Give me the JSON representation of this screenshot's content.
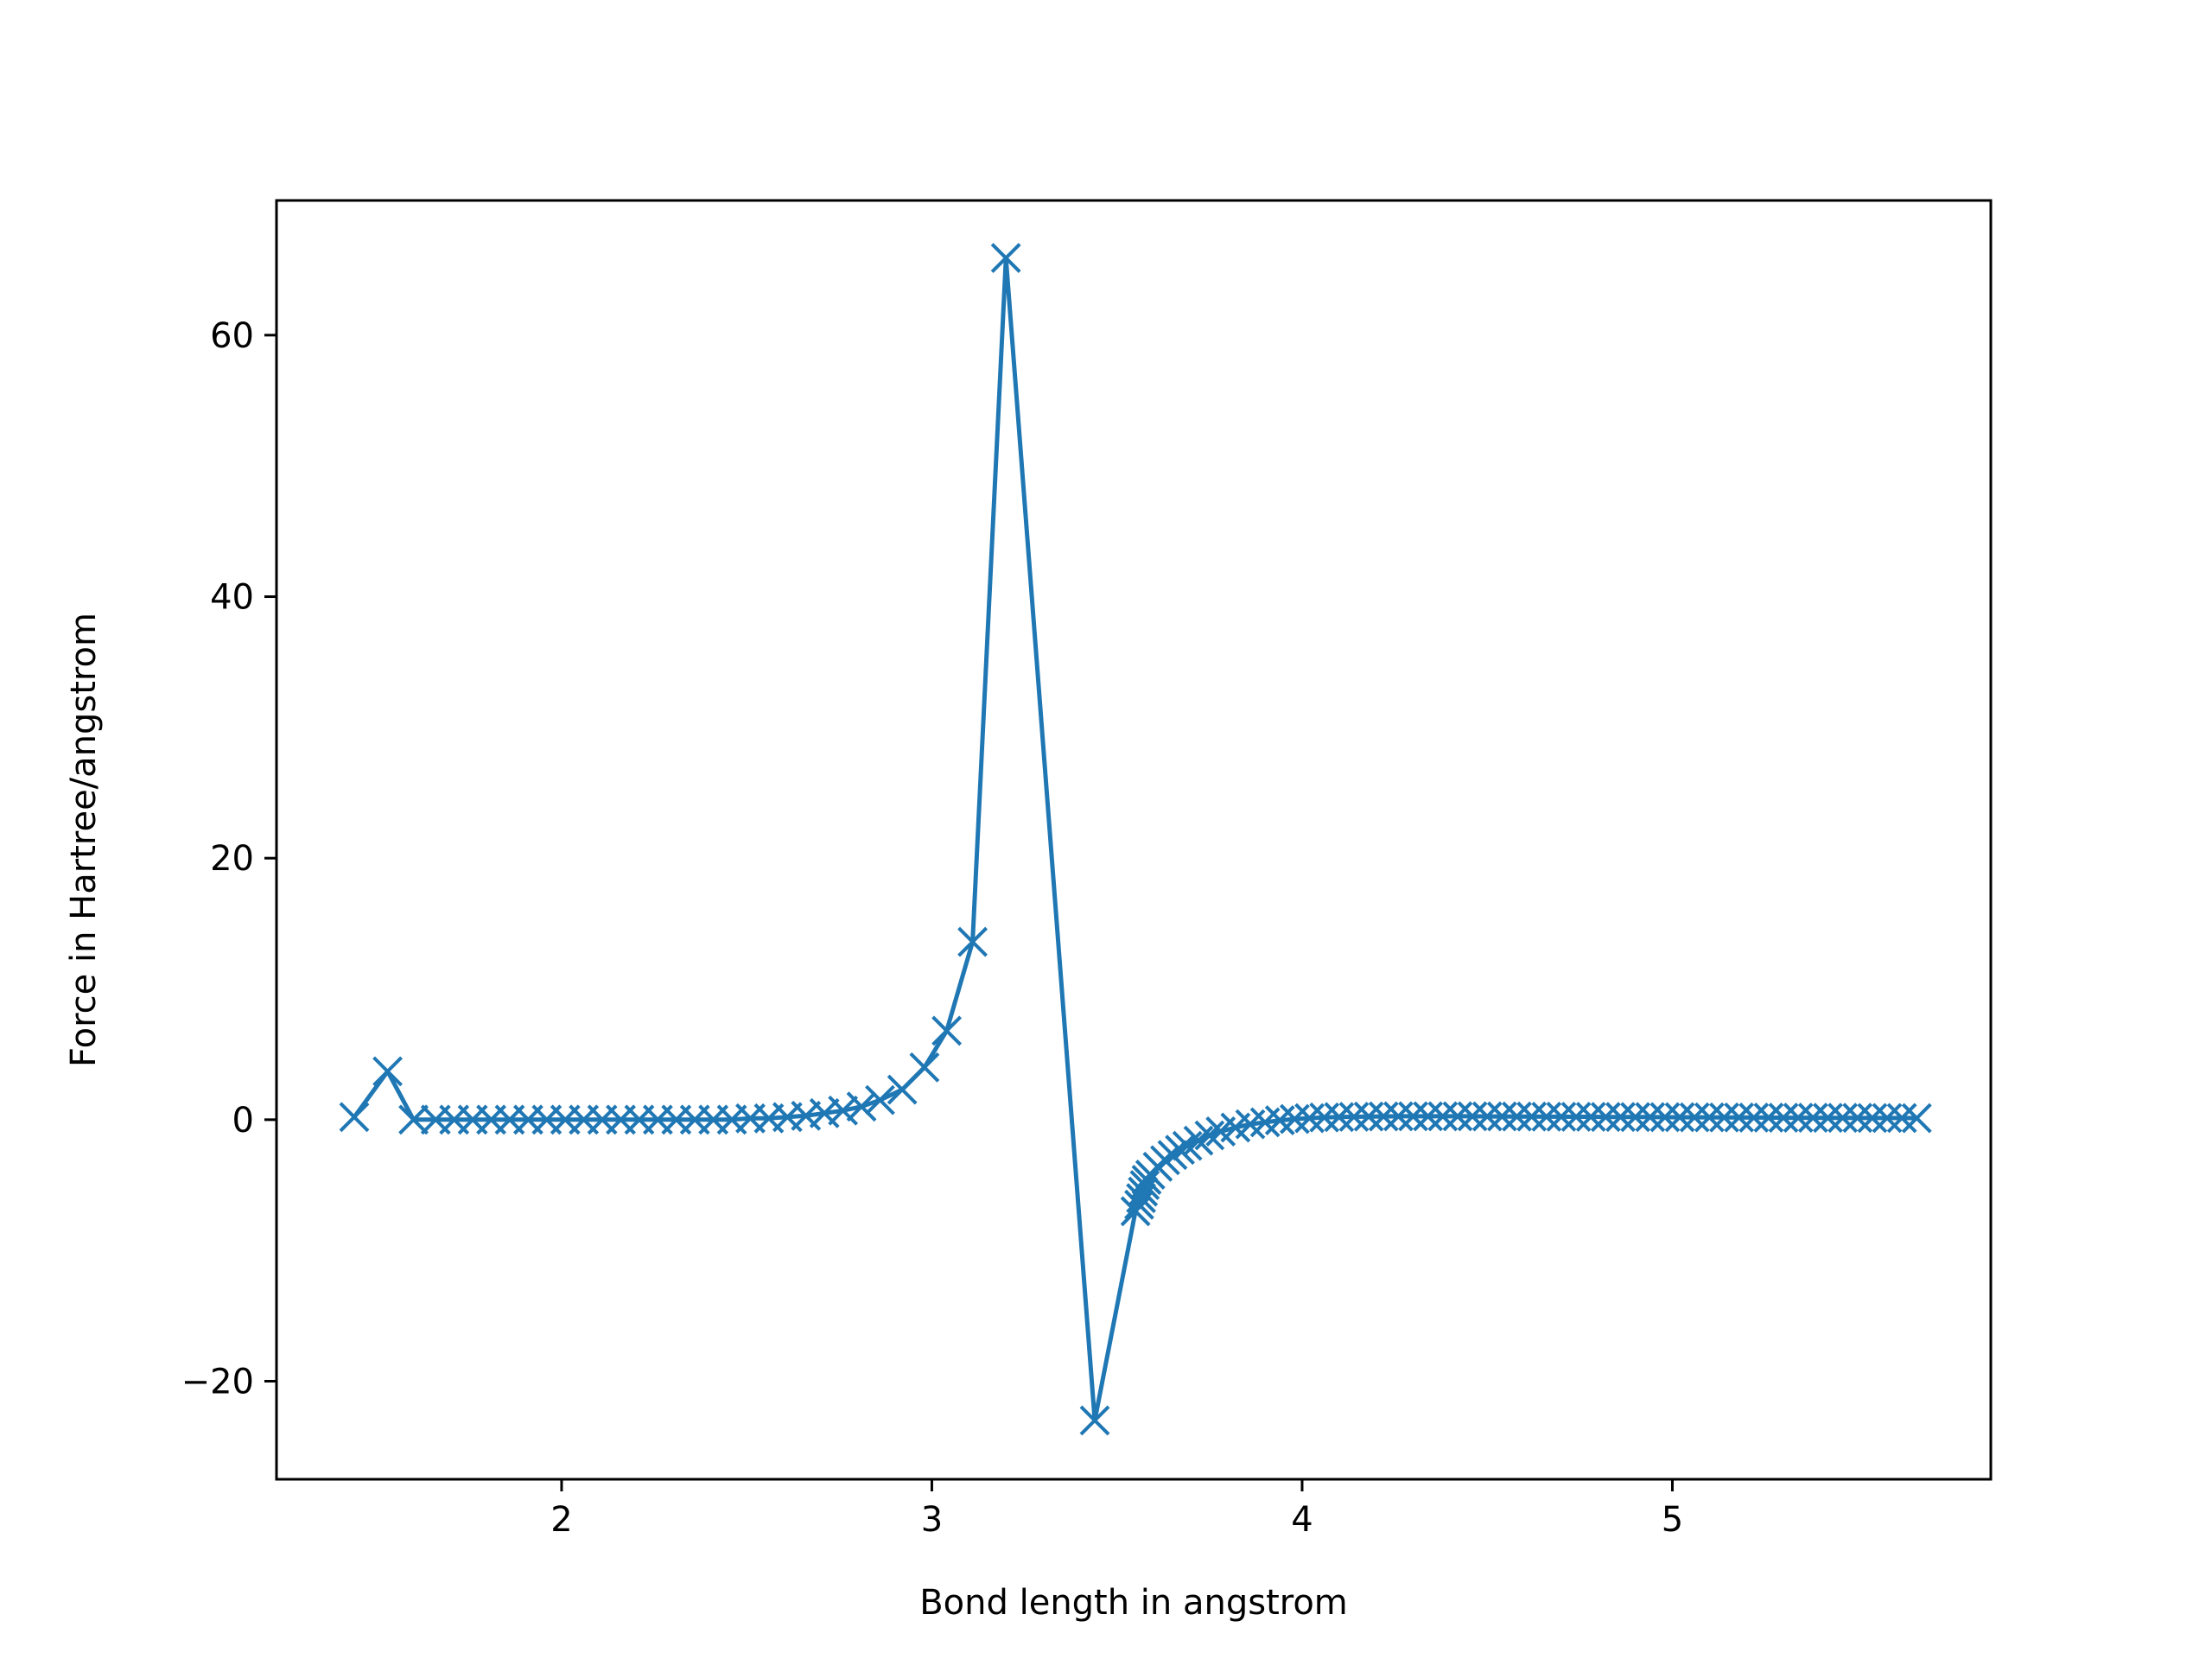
{
  "chart_data": {
    "type": "line",
    "title": "",
    "xlabel": "Bond length in angstrom",
    "ylabel": "Force in Hartree/angstrom",
    "xlim": [
      1.23,
      5.86
    ],
    "ylim": [
      -27.5,
      70.3
    ],
    "grid": false,
    "xticks": [
      2,
      3,
      4,
      5
    ],
    "yticks": [
      -20,
      0,
      20,
      40,
      60
    ],
    "xtick_labels": [
      "2",
      "3",
      "4",
      "5"
    ],
    "ytick_labels": [
      "−20",
      "0",
      "20",
      "40",
      "60"
    ],
    "marker": "x",
    "color": "#1f77b4",
    "series": [
      {
        "x": [
          1.44,
          1.53,
          1.6,
          1.66,
          1.71,
          1.76,
          1.81,
          1.86,
          1.91,
          1.96,
          2.01,
          2.06,
          2.11,
          2.16,
          2.21,
          2.26,
          2.31,
          2.36,
          2.41,
          2.46,
          2.51,
          2.56,
          2.61,
          2.66,
          2.71,
          2.76,
          2.81,
          2.86,
          2.92,
          2.98,
          3.04,
          3.11,
          3.2,
          3.44,
          3.55,
          3.56,
          3.565,
          3.57,
          3.575,
          3.58,
          3.59,
          3.61,
          3.63,
          3.65,
          3.67,
          3.69,
          3.72,
          3.75,
          3.78,
          3.82,
          3.86,
          3.9,
          3.94,
          3.98,
          4.02,
          4.06,
          4.1,
          4.14,
          4.18,
          4.22,
          4.26,
          4.3,
          4.34,
          4.38,
          4.42,
          4.46,
          4.5,
          4.54,
          4.58,
          4.62,
          4.66,
          4.7,
          4.74,
          4.78,
          4.82,
          4.86,
          4.9,
          4.94,
          4.98,
          5.02,
          5.06,
          5.1,
          5.14,
          5.18,
          5.22,
          5.26,
          5.3,
          5.34,
          5.38,
          5.42,
          5.46,
          5.5,
          5.54,
          5.58,
          5.62,
          5.66
        ],
        "y": [
          0.2,
          3.7,
          0.0,
          0.0,
          0.0,
          0.0,
          0.0,
          0.0,
          0.0,
          0.0,
          0.0,
          0.0,
          0.0,
          0.0,
          0.0,
          0.0,
          0.0,
          0.0,
          0.0,
          0.0,
          0.1,
          0.1,
          0.2,
          0.3,
          0.5,
          0.7,
          1.0,
          1.5,
          2.3,
          4.0,
          6.8,
          13.6,
          65.9,
          -23.0,
          -7.0,
          -6.5,
          -6.0,
          -5.5,
          -5.0,
          -4.6,
          -4.2,
          -3.6,
          -3.1,
          -2.7,
          -2.3,
          -2.0,
          -1.6,
          -1.2,
          -0.9,
          -0.6,
          -0.35,
          -0.2,
          -0.05,
          0.05,
          0.12,
          0.17,
          0.2,
          0.22,
          0.24,
          0.25,
          0.26,
          0.26,
          0.26,
          0.26,
          0.26,
          0.26,
          0.25,
          0.25,
          0.24,
          0.24,
          0.23,
          0.23,
          0.22,
          0.22,
          0.21,
          0.21,
          0.2,
          0.2,
          0.19,
          0.19,
          0.18,
          0.18,
          0.17,
          0.17,
          0.16,
          0.16,
          0.15,
          0.15,
          0.15,
          0.14,
          0.14,
          0.14,
          0.13,
          0.13,
          0.13,
          0.12
        ]
      }
    ]
  }
}
